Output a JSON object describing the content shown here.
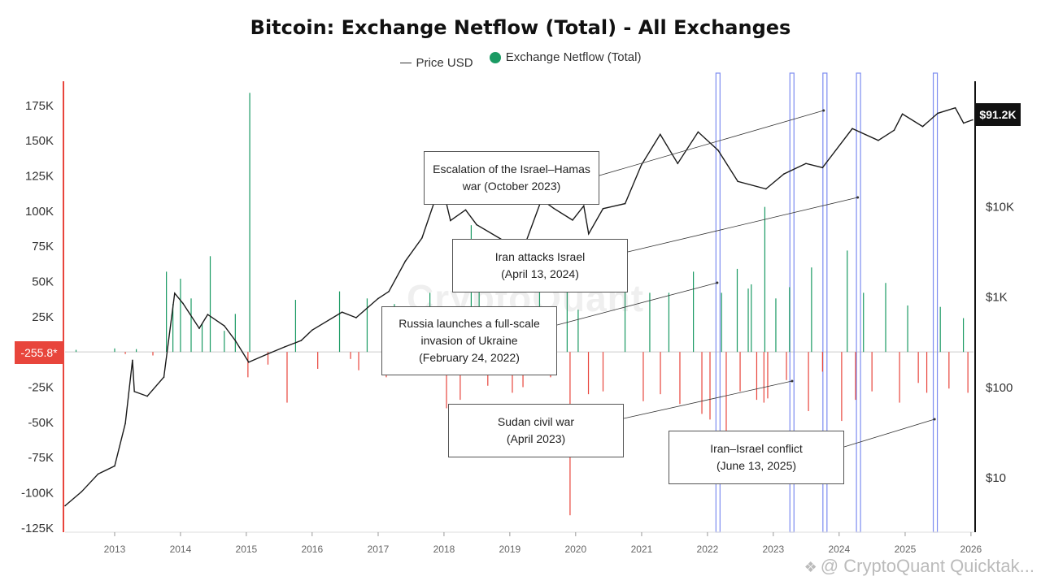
{
  "title": "Bitcoin: Exchange Netflow (Total) - All Exchanges",
  "legend": {
    "price_label": "Price USD",
    "netflow_label": "Exchange Netflow (Total)",
    "netflow_color": "#1a9a63"
  },
  "colors": {
    "price": "#1a1a1a",
    "inflow_positive": "#1a9a63",
    "outflow_negative": "#e8453c",
    "highlight": "#7d8cf0",
    "left_axis_line": "#e8453c"
  },
  "badges": {
    "price_current": "$91.2K",
    "netflow_current": "-255.8*"
  },
  "watermark": "CryptoQuant",
  "source_text": "@ CryptoQuant Quicktak...",
  "chart_data": {
    "type": "bar",
    "title": "Bitcoin: Exchange Netflow (Total) - All Exchanges",
    "x_range": [
      "2012-04-01",
      "2026-01-15"
    ],
    "x_ticks": [
      "2013",
      "2014",
      "2015",
      "2016",
      "2017",
      "2018",
      "2019",
      "2020",
      "2021",
      "2022",
      "2023",
      "2024",
      "2025",
      "2026"
    ],
    "y_left": {
      "name": "Exchange Netflow (Total)",
      "ylim": [
        -128000,
        198000
      ],
      "ticks": [
        175000,
        150000,
        125000,
        100000,
        75000,
        50000,
        25000,
        0,
        -25000,
        -50000,
        -75000,
        -100000,
        -125000
      ],
      "tick_labels": [
        "175K",
        "150K",
        "125K",
        "100K",
        "75K",
        "50K",
        "25K",
        "",
        "-25K",
        "-50K",
        "-75K",
        "-100K",
        "-125K"
      ]
    },
    "y_right": {
      "name": "Price USD",
      "scale": "log",
      "ylim": [
        2.5,
        300000
      ],
      "ticks": [
        10,
        100,
        1000,
        10000
      ],
      "tick_labels": [
        "$10",
        "$100",
        "$1K",
        "$10K"
      ]
    },
    "series": [
      {
        "name": "Price USD",
        "type": "line",
        "points": [
          [
            "2012-04-01",
            4.9
          ],
          [
            "2012-07-01",
            7
          ],
          [
            "2012-10-01",
            11
          ],
          [
            "2013-01-01",
            13.5
          ],
          [
            "2013-03-01",
            40
          ],
          [
            "2013-04-10",
            200
          ],
          [
            "2013-04-20",
            90
          ],
          [
            "2013-07-01",
            80
          ],
          [
            "2013-10-01",
            130
          ],
          [
            "2013-11-30",
            1100
          ],
          [
            "2014-01-15",
            850
          ],
          [
            "2014-04-15",
            450
          ],
          [
            "2014-06-01",
            640
          ],
          [
            "2014-09-01",
            480
          ],
          [
            "2014-11-01",
            330
          ],
          [
            "2015-01-14",
            190
          ],
          [
            "2015-05-01",
            235
          ],
          [
            "2015-08-01",
            280
          ],
          [
            "2015-11-01",
            330
          ],
          [
            "2016-01-01",
            430
          ],
          [
            "2016-06-15",
            680
          ],
          [
            "2016-09-01",
            590
          ],
          [
            "2016-12-31",
            960
          ],
          [
            "2017-03-01",
            1150
          ],
          [
            "2017-06-01",
            2500
          ],
          [
            "2017-09-01",
            4500
          ],
          [
            "2017-12-17",
            19000
          ],
          [
            "2018-02-06",
            7000
          ],
          [
            "2018-05-01",
            9200
          ],
          [
            "2018-07-01",
            6300
          ],
          [
            "2018-11-20",
            4300
          ],
          [
            "2018-12-15",
            3200
          ],
          [
            "2019-04-01",
            4100
          ],
          [
            "2019-06-26",
            12000
          ],
          [
            "2019-09-01",
            9600
          ],
          [
            "2019-12-15",
            7100
          ],
          [
            "2020-02-15",
            10200
          ],
          [
            "2020-03-13",
            5000
          ],
          [
            "2020-06-01",
            9500
          ],
          [
            "2020-10-01",
            10800
          ],
          [
            "2020-12-31",
            29000
          ],
          [
            "2021-04-14",
            63000
          ],
          [
            "2021-07-20",
            30000
          ],
          [
            "2021-11-10",
            67000
          ],
          [
            "2022-03-01",
            42000
          ],
          [
            "2022-06-18",
            19000
          ],
          [
            "2022-11-21",
            15700
          ],
          [
            "2023-03-01",
            23000
          ],
          [
            "2023-07-01",
            30000
          ],
          [
            "2023-10-01",
            27000
          ],
          [
            "2024-03-14",
            73000
          ],
          [
            "2024-08-05",
            54000
          ],
          [
            "2024-11-01",
            70000
          ],
          [
            "2024-12-17",
            106000
          ],
          [
            "2025-04-08",
            77000
          ],
          [
            "2025-07-01",
            108000
          ],
          [
            "2025-10-06",
            124000
          ],
          [
            "2025-11-21",
            84000
          ],
          [
            "2026-01-10",
            91200
          ]
        ]
      },
      {
        "name": "Exchange Netflow (Total)",
        "type": "bar",
        "positive_color": "#1a9a63",
        "negative_color": "#e8453c",
        "points": [
          [
            "2012-06-01",
            1500
          ],
          [
            "2013-01-01",
            2500
          ],
          [
            "2013-03-01",
            -1500
          ],
          [
            "2013-05-01",
            2000
          ],
          [
            "2013-08-01",
            -2500
          ],
          [
            "2013-10-15",
            57000
          ],
          [
            "2013-11-20",
            34000
          ],
          [
            "2014-01-01",
            52000
          ],
          [
            "2014-03-01",
            38000
          ],
          [
            "2014-05-01",
            20000
          ],
          [
            "2014-06-15",
            68000
          ],
          [
            "2014-09-01",
            15000
          ],
          [
            "2014-11-01",
            27000
          ],
          [
            "2015-01-10",
            -18000
          ],
          [
            "2015-01-20",
            184000
          ],
          [
            "2015-05-01",
            -9000
          ],
          [
            "2015-08-15",
            -36000
          ],
          [
            "2015-10-01",
            37000
          ],
          [
            "2016-02-01",
            -12000
          ],
          [
            "2016-06-01",
            43000
          ],
          [
            "2016-08-01",
            -5000
          ],
          [
            "2016-09-15",
            -13000
          ],
          [
            "2016-11-01",
            38000
          ],
          [
            "2017-02-15",
            -18000
          ],
          [
            "2017-04-01",
            34000
          ],
          [
            "2017-07-01",
            -13000
          ],
          [
            "2017-10-15",
            42000
          ],
          [
            "2017-12-01",
            -16000
          ],
          [
            "2018-01-15",
            -40000
          ],
          [
            "2018-04-01",
            -34000
          ],
          [
            "2018-06-01",
            90000
          ],
          [
            "2018-07-15",
            46000
          ],
          [
            "2018-09-01",
            -24000
          ],
          [
            "2018-11-20",
            23000
          ],
          [
            "2019-01-15",
            -29000
          ],
          [
            "2019-03-15",
            -25000
          ],
          [
            "2019-06-15",
            54000
          ],
          [
            "2019-08-15",
            -18000
          ],
          [
            "2019-11-15",
            55000
          ],
          [
            "2019-12-01",
            -116000
          ],
          [
            "2020-01-15",
            30000
          ],
          [
            "2020-03-12",
            -30000
          ],
          [
            "2020-06-01",
            -28000
          ],
          [
            "2020-10-01",
            48000
          ],
          [
            "2021-01-10",
            -35000
          ],
          [
            "2021-02-15",
            42000
          ],
          [
            "2021-04-15",
            -30000
          ],
          [
            "2021-06-01",
            42000
          ],
          [
            "2021-08-01",
            -37000
          ],
          [
            "2021-10-15",
            57000
          ],
          [
            "2021-12-01",
            -44000
          ],
          [
            "2022-01-15",
            -48000
          ],
          [
            "2022-03-20",
            42000
          ],
          [
            "2022-04-15",
            -59000
          ],
          [
            "2022-06-15",
            59000
          ],
          [
            "2022-07-01",
            -28000
          ],
          [
            "2022-08-15",
            45000
          ],
          [
            "2022-09-01",
            48000
          ],
          [
            "2022-10-01",
            -34000
          ],
          [
            "2022-11-10",
            -36000
          ],
          [
            "2022-11-15",
            103000
          ],
          [
            "2022-12-01",
            -33000
          ],
          [
            "2023-01-15",
            38000
          ],
          [
            "2023-03-15",
            -20000
          ],
          [
            "2023-04-01",
            46000
          ],
          [
            "2023-07-15",
            -42000
          ],
          [
            "2023-08-01",
            60000
          ],
          [
            "2023-10-01",
            -14000
          ],
          [
            "2024-01-15",
            -49000
          ],
          [
            "2024-02-15",
            72000
          ],
          [
            "2024-04-01",
            -34000
          ],
          [
            "2024-05-15",
            42000
          ],
          [
            "2024-07-01",
            -28000
          ],
          [
            "2024-09-15",
            49000
          ],
          [
            "2024-12-01",
            -36000
          ],
          [
            "2025-01-15",
            33000
          ],
          [
            "2025-03-15",
            -22000
          ],
          [
            "2025-05-01",
            -29000
          ],
          [
            "2025-07-15",
            32000
          ],
          [
            "2025-09-01",
            -26000
          ],
          [
            "2025-11-20",
            24000
          ],
          [
            "2025-12-15",
            -29000
          ]
        ]
      }
    ],
    "highlight_bands": [
      {
        "start": "2022-02-17",
        "end": "2022-03-05"
      },
      {
        "start": "2023-04-03",
        "end": "2023-04-17"
      },
      {
        "start": "2023-10-03",
        "end": "2023-10-17"
      },
      {
        "start": "2024-04-06",
        "end": "2024-04-20"
      },
      {
        "start": "2025-06-06",
        "end": "2025-06-20"
      }
    ],
    "annotations": [
      {
        "lines": [
          "Escalation of the Israel–Hamas",
          "war (October 2023)"
        ],
        "target_date": "2023-10-07"
      },
      {
        "lines": [
          "Iran attacks Israel",
          "(April 13, 2024)"
        ],
        "target_date": "2024-04-13"
      },
      {
        "lines": [
          "Russia launches a full-scale",
          "invasion of Ukraine",
          "(February 24, 2022)"
        ],
        "target_date": "2022-02-24"
      },
      {
        "lines": [
          "Sudan civil war",
          "(April 2023)"
        ],
        "target_date": "2023-04-15"
      },
      {
        "lines": [
          "Iran–Israel conflict",
          "(June 13, 2025)"
        ],
        "target_date": "2025-06-13"
      }
    ]
  }
}
